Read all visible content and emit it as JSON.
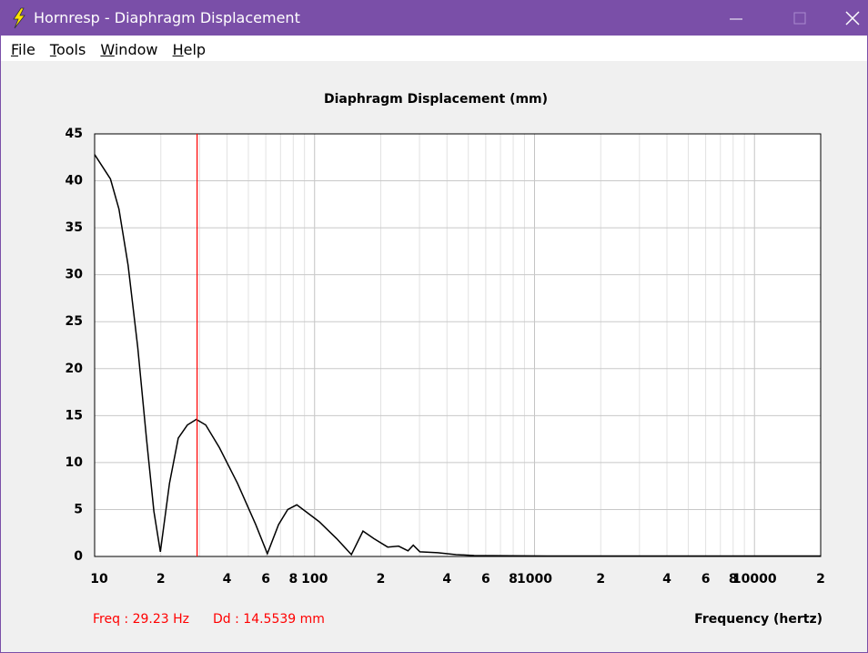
{
  "window": {
    "title": "Hornresp - Diaphragm Displacement"
  },
  "menu": [
    "File",
    "Tools",
    "Window",
    "Help"
  ],
  "chart_data": {
    "type": "line",
    "title": "Diaphragm Displacement (mm)",
    "x_label": "Frequency (hertz)",
    "x": [
      10,
      11.8,
      12.9,
      14.2,
      15.7,
      17.2,
      18.6,
      19.9,
      21.9,
      24,
      26.4,
      29,
      32,
      36.9,
      44.6,
      54,
      61,
      68.6,
      75.5,
      83,
      91,
      105,
      126,
      147,
      166,
      186,
      215,
      241,
      266,
      281,
      301,
      363,
      440,
      532,
      1140,
      20000
    ],
    "series": [
      {
        "color": "#000000",
        "values": [
          42.8,
          40.2,
          37,
          31,
          22.3,
          12.6,
          4.8,
          0.5,
          7.8,
          12.6,
          14,
          14.6,
          14,
          11.6,
          7.8,
          3.4,
          0.3,
          3.4,
          5,
          5.5,
          4.8,
          3.7,
          1.9,
          0.2,
          2.7,
          1.9,
          1.0,
          1.1,
          0.6,
          1.2,
          0.5,
          0.4,
          0.2,
          0.1,
          0.05,
          0.05
        ]
      }
    ],
    "xscale": "log",
    "xlim": [
      10,
      20000
    ],
    "ylim": [
      0,
      45
    ],
    "yticks": [
      0,
      5,
      10,
      15,
      20,
      25,
      30,
      35,
      40,
      45
    ],
    "xticks": [
      10,
      {
        "value": 20,
        "label": "2"
      },
      {
        "value": 40,
        "label": "4"
      },
      {
        "value": 60,
        "label": "6"
      },
      {
        "value": 80,
        "label": "8"
      },
      100,
      {
        "value": 200,
        "label": "2"
      },
      {
        "value": 400,
        "label": "4"
      },
      {
        "value": 600,
        "label": "6"
      },
      {
        "value": 800,
        "label": "8"
      },
      1000,
      {
        "value": 2000,
        "label": "2"
      },
      {
        "value": 4000,
        "label": "4"
      },
      {
        "value": 6000,
        "label": "6"
      },
      {
        "value": 8000,
        "label": "8"
      },
      10000,
      {
        "value": 20000,
        "label": "2"
      }
    ],
    "xminorticks": [
      30,
      50,
      70,
      90,
      300,
      500,
      700,
      900,
      3000,
      5000,
      7000,
      9000
    ],
    "grid": true,
    "cursor": {
      "x": 29.23,
      "color": "#ff0000"
    },
    "annotations": [
      "Freq : 29.23 Hz",
      "Dd : 14.5539 mm"
    ]
  }
}
